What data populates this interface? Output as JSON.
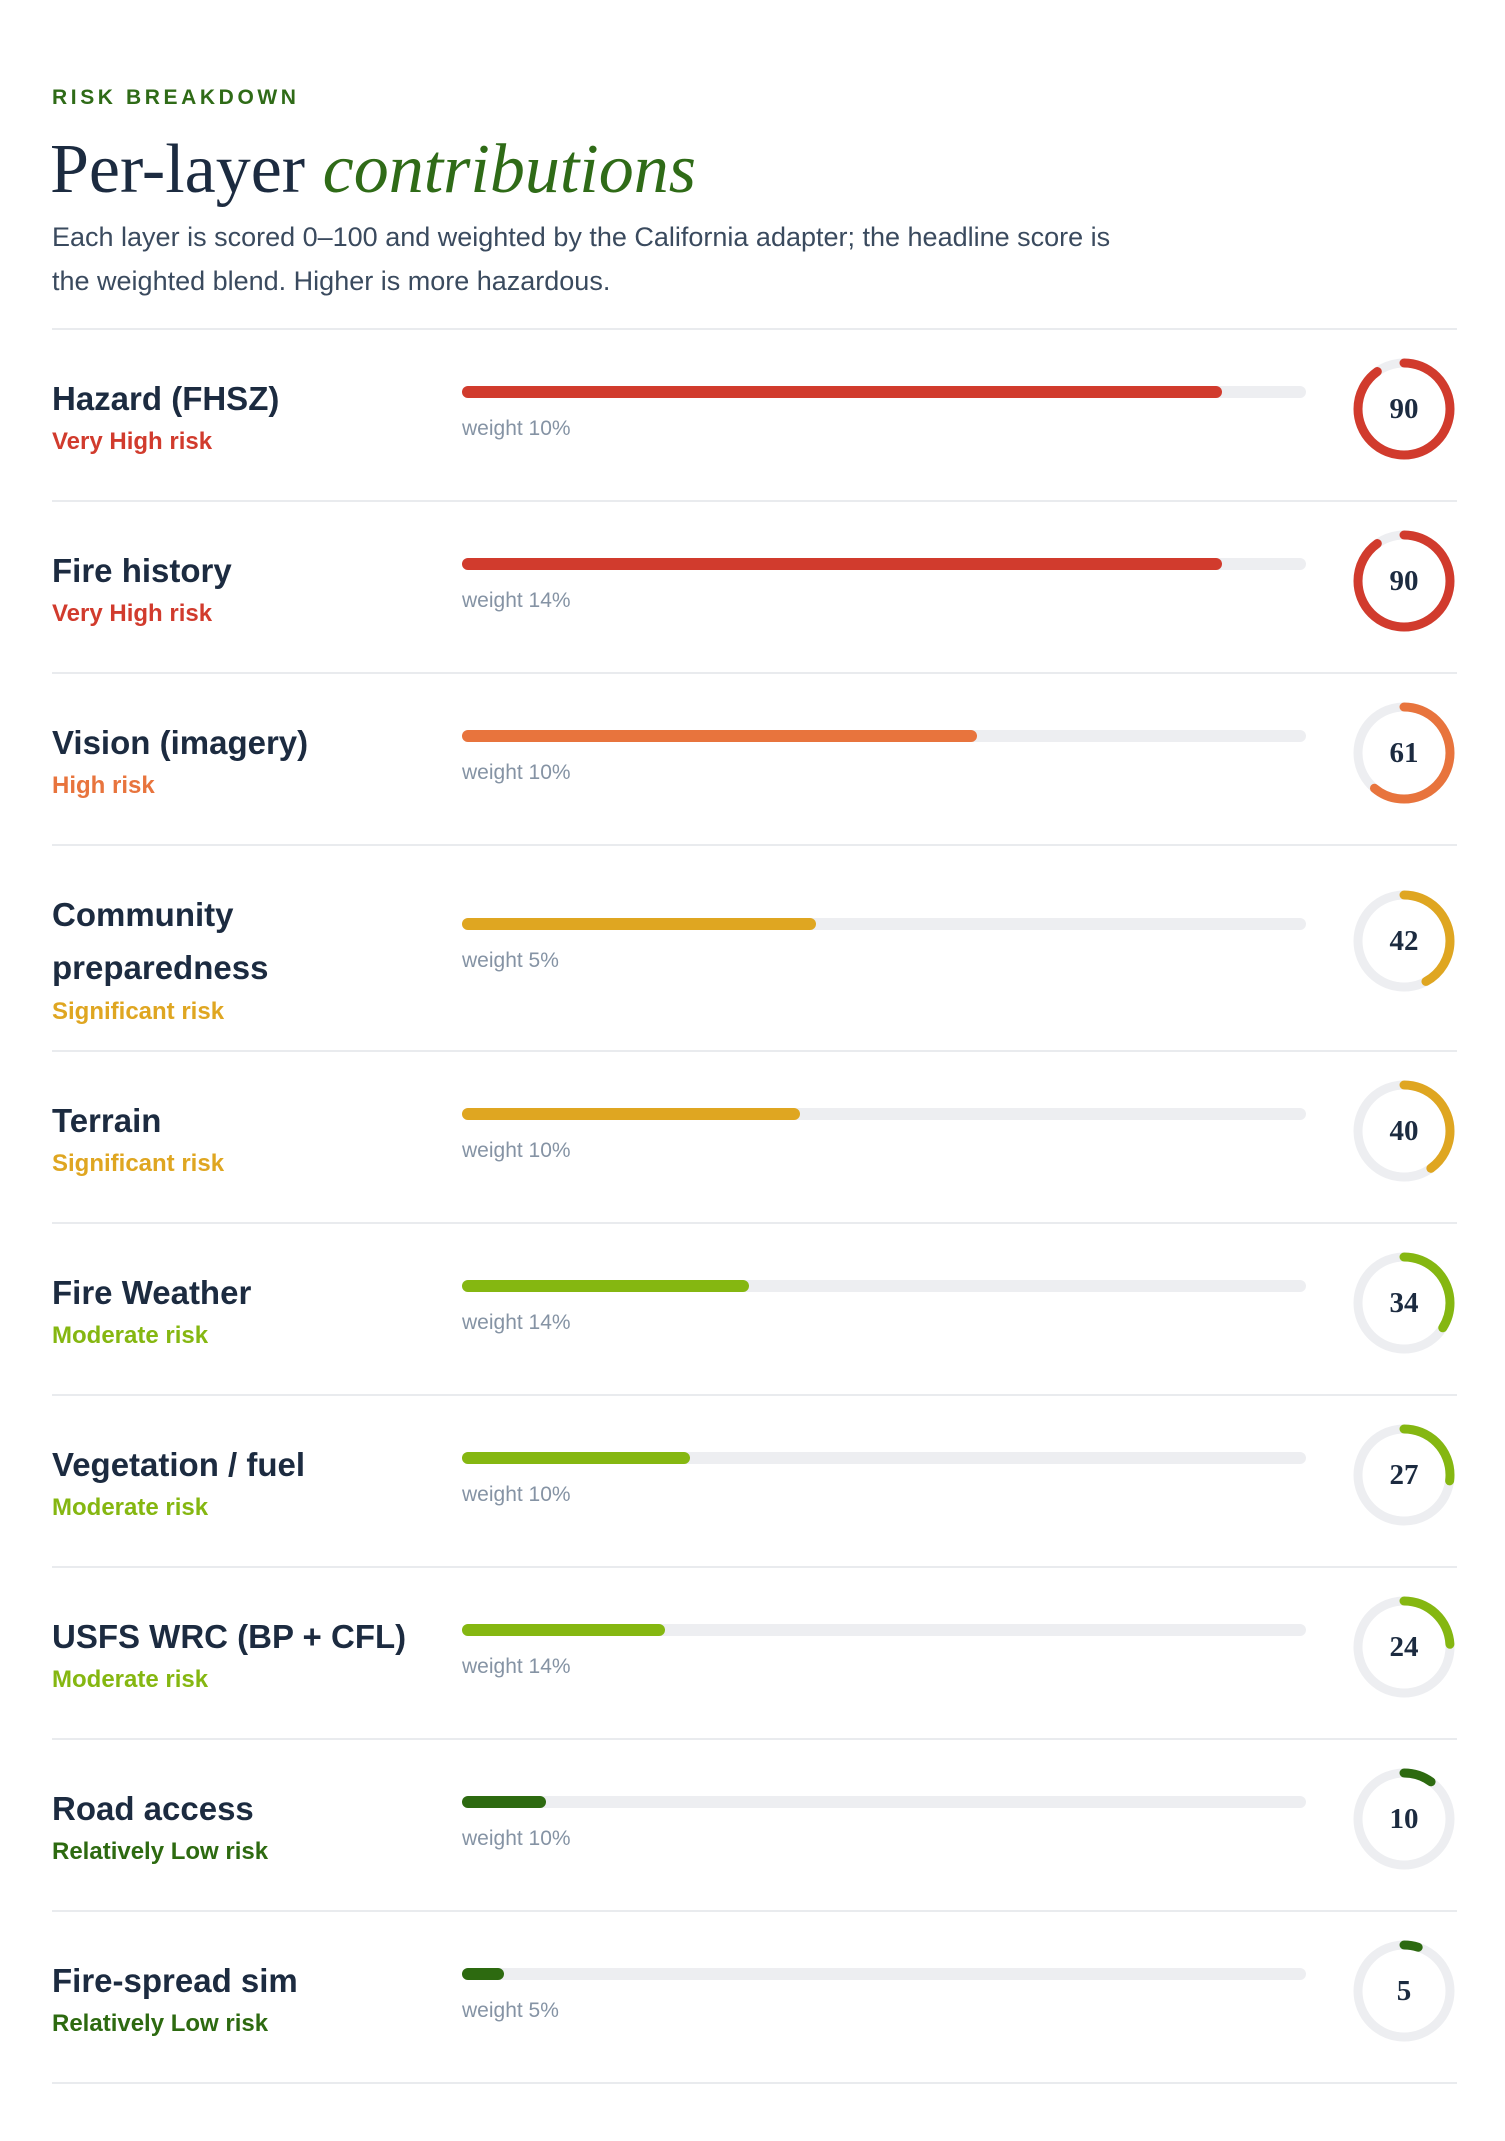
{
  "header": {
    "eyebrow": "RISK BREAKDOWN",
    "title_main": "Per-layer ",
    "title_accent": "contributions",
    "description": "Each layer is scored 0–100 and weighted by the California adapter; the headline score is the weighted blend. Higher is more hazardous."
  },
  "colors": {
    "very_high": "#d13b2d",
    "high": "#e8743d",
    "significant": "#dfa621",
    "moderate": "#85b711",
    "low": "#2d6a10",
    "track": "#edeef1"
  },
  "layers": [
    {
      "name": "Hazard (FHSZ)",
      "risk": "Very High risk",
      "weight": "weight 10%",
      "score": 90,
      "score_label": "90",
      "color": "#d13b2d"
    },
    {
      "name": "Fire history",
      "risk": "Very High risk",
      "weight": "weight 14%",
      "score": 90,
      "score_label": "90",
      "color": "#d13b2d"
    },
    {
      "name": "Vision (imagery)",
      "risk": "High risk",
      "weight": "weight 10%",
      "score": 61,
      "score_label": "61",
      "color": "#e8743d"
    },
    {
      "name": "Community preparedness",
      "risk": "Significant risk",
      "weight": "weight 5%",
      "score": 42,
      "score_label": "42",
      "color": "#dfa621"
    },
    {
      "name": "Terrain",
      "risk": "Significant risk",
      "weight": "weight 10%",
      "score": 40,
      "score_label": "40",
      "color": "#dfa621"
    },
    {
      "name": "Fire Weather",
      "risk": "Moderate risk",
      "weight": "weight 14%",
      "score": 34,
      "score_label": "34",
      "color": "#85b711"
    },
    {
      "name": "Vegetation / fuel",
      "risk": "Moderate risk",
      "weight": "weight 10%",
      "score": 27,
      "score_label": "27",
      "color": "#85b711"
    },
    {
      "name": "USFS WRC (BP + CFL)",
      "risk": "Moderate risk",
      "weight": "weight 14%",
      "score": 24,
      "score_label": "24",
      "color": "#85b711"
    },
    {
      "name": "Road access",
      "risk": "Relatively Low risk",
      "weight": "weight 10%",
      "score": 10,
      "score_label": "10",
      "color": "#2d6a10"
    },
    {
      "name": "Fire-spread sim",
      "risk": "Relatively Low risk",
      "weight": "weight 5%",
      "score": 5,
      "score_label": "5",
      "color": "#2d6a10"
    }
  ]
}
